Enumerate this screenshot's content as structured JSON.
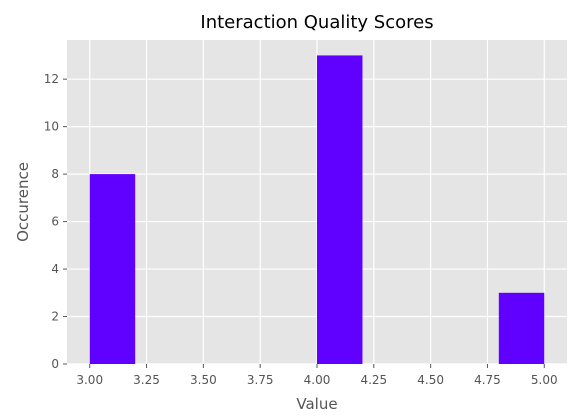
{
  "chart_data": {
    "type": "bar",
    "title": "Interaction Quality Scores",
    "xlabel": "Value",
    "ylabel": "Occurence",
    "xlim": [
      2.9,
      5.1
    ],
    "ylim": [
      0,
      13.65
    ],
    "xticks": [
      "3.00",
      "3.25",
      "3.50",
      "3.75",
      "4.00",
      "4.25",
      "4.50",
      "4.75",
      "5.00"
    ],
    "yticks": [
      "0",
      "2",
      "4",
      "6",
      "8",
      "10",
      "12"
    ],
    "bins": [
      {
        "x0": 3.0,
        "x1": 3.2,
        "count": 8
      },
      {
        "x0": 3.2,
        "x1": 3.4,
        "count": 0
      },
      {
        "x0": 3.4,
        "x1": 3.6,
        "count": 0
      },
      {
        "x0": 3.6,
        "x1": 3.8,
        "count": 0
      },
      {
        "x0": 3.8,
        "x1": 4.0,
        "count": 0
      },
      {
        "x0": 4.0,
        "x1": 4.2,
        "count": 13
      },
      {
        "x0": 4.2,
        "x1": 4.4,
        "count": 0
      },
      {
        "x0": 4.4,
        "x1": 4.6,
        "count": 0
      },
      {
        "x0": 4.6,
        "x1": 4.8,
        "count": 0
      },
      {
        "x0": 4.8,
        "x1": 5.0,
        "count": 3
      }
    ],
    "grid": true,
    "colors": {
      "bar": "#6000ff",
      "plot_background": "#e5e5e5",
      "grid": "#ffffff"
    }
  }
}
